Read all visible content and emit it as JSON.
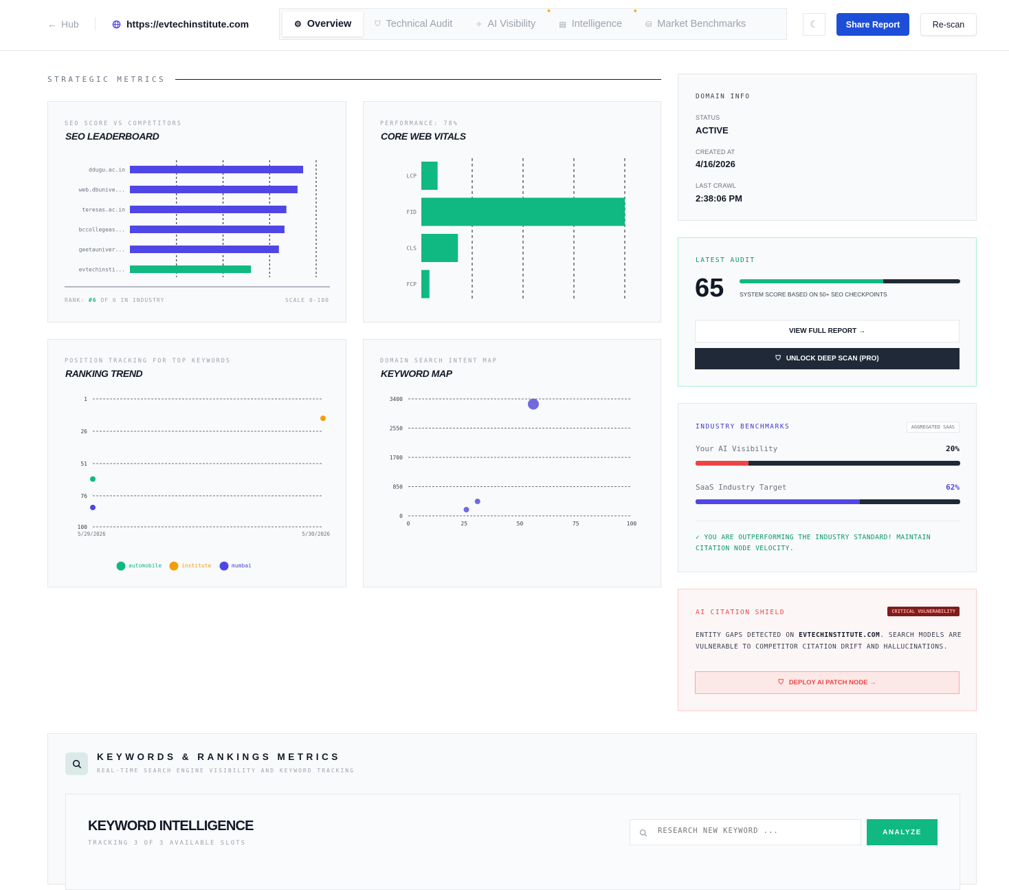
{
  "nav": {
    "hub_label": "Hub",
    "url": "https://evtechinstitute.com",
    "tabs": [
      {
        "label": "Overview",
        "icon": "grid-icon"
      },
      {
        "label": "Technical Audit",
        "icon": "shield-icon"
      },
      {
        "label": "AI Visibility",
        "icon": "sparkle-icon"
      },
      {
        "label": "Intelligence",
        "icon": "document-icon"
      },
      {
        "label": "Market Benchmarks",
        "icon": "database-icon"
      }
    ],
    "share_label": "Share Report",
    "rescan_label": "Re-scan"
  },
  "strategic_label": "STRATEGIC METRICS",
  "leaderboard": {
    "kicker": "SEO SCORE VS COMPETITORS",
    "title": "SEO LEADERBOARD",
    "rank_prefix": "RANK:",
    "rank_value": "#6",
    "rank_suffix": "OF 6 IN INDUSTRY",
    "scale": "SCALE 0-100"
  },
  "cwv": {
    "kicker": "PERFORMANCE: 78%",
    "title": "CORE WEB VITALS"
  },
  "ranking": {
    "kicker": "POSITION TRACKING FOR TOP KEYWORDS",
    "title": "RANKING TREND"
  },
  "keymap": {
    "kicker": "DOMAIN SEARCH INTENT MAP",
    "title": "KEYWORD MAP"
  },
  "chart_data": [
    {
      "type": "bar",
      "orientation": "horizontal",
      "categories": [
        "ddugu.ac.in",
        "web.dbunive...",
        "teresas.ac.in",
        "bccollegeas...",
        "geetauniver...",
        "evtechinsti..."
      ],
      "values": [
        93,
        90,
        84,
        83,
        80,
        65
      ],
      "xlim": [
        0,
        100
      ],
      "colors": [
        "#4f46e5",
        "#4f46e5",
        "#4f46e5",
        "#4f46e5",
        "#4f46e5",
        "#10b981"
      ],
      "grid": true
    },
    {
      "type": "bar",
      "orientation": "horizontal",
      "categories": [
        "LCP",
        "FID",
        "CLS",
        "FCP"
      ],
      "values": [
        8,
        100,
        18,
        4
      ],
      "colors": [
        "#10b981"
      ],
      "grid": true
    },
    {
      "type": "scatter",
      "x_ticks": [
        "5/29/2026",
        "5/30/2026"
      ],
      "y_ticks": [
        "1",
        "26",
        "51",
        "76",
        "100"
      ],
      "ylim": [
        1,
        100
      ],
      "y_inverted": true,
      "series": [
        {
          "name": "automobile",
          "color": "#10b981",
          "points": [
            {
              "x": "5/29/2026",
              "y": 63
            }
          ]
        },
        {
          "name": "institute",
          "color": "#f59e0b",
          "points": [
            {
              "x": "5/30/2026",
              "y": 16
            }
          ]
        },
        {
          "name": "mumbai",
          "color": "#4f46e5",
          "points": [
            {
              "x": "5/29/2026",
              "y": 85
            }
          ]
        }
      ],
      "legend": "bottom"
    },
    {
      "type": "scatter",
      "x_ticks": [
        "0",
        "25",
        "50",
        "75",
        "100"
      ],
      "y_ticks": [
        "0",
        "850",
        "1700",
        "2550",
        "3400"
      ],
      "xlim": [
        0,
        100
      ],
      "ylim": [
        0,
        3400
      ],
      "points": [
        {
          "x": 56,
          "y": 3250,
          "r": 8
        },
        {
          "x": 26,
          "y": 180,
          "r": 4
        },
        {
          "x": 31,
          "y": 420,
          "r": 4
        }
      ],
      "color": "#5b4fdb"
    }
  ],
  "domain_info": {
    "label": "DOMAIN INFO",
    "status_label": "STATUS",
    "status": "ACTIVE",
    "created_label": "CREATED AT",
    "created": "4/16/2026",
    "crawl_label": "LAST CRAWL",
    "crawl": "2:38:06 PM"
  },
  "audit": {
    "label": "LATEST AUDIT",
    "score": "65",
    "score_fraction": 0.65,
    "caption": "SYSTEM SCORE BASED ON 50+ SEO CHECKPOINTS",
    "view_label": "VIEW FULL REPORT →",
    "unlock_label": "UNLOCK DEEP SCAN (PRO)"
  },
  "benchmarks": {
    "label": "INDUSTRY BENCHMARKS",
    "badge": "AGGREGATED SAAS",
    "rows": [
      {
        "label": "Your AI Visibility",
        "value": "20%",
        "fraction": 0.2,
        "color": "#ef4444"
      },
      {
        "label": "SaaS Industry Target",
        "value": "62%",
        "fraction": 0.62,
        "color": "#4f46e5"
      }
    ],
    "note": "✓ YOU ARE OUTPERFORMING THE INDUSTRY STANDARD! MAINTAIN CITATION NODE VELOCITY."
  },
  "shield": {
    "label": "AI CITATION SHIELD",
    "badge": "CRITICAL VULNERABILITY",
    "text_pre": "ENTITY GAPS DETECTED ON",
    "domain": "EVTECHINSTITUTE.COM",
    "text_post": ". SEARCH MODELS ARE VULNERABLE TO COMPETITOR CITATION DRIFT AND HALLUCINATIONS.",
    "button": "DEPLOY AI PATCH NODE →"
  },
  "keywords": {
    "title": "KEYWORDS & RANKINGS METRICS",
    "subtitle": "REAL-TIME SEARCH ENGINE VISIBILITY AND KEYWORD TRACKING",
    "intel_title": "KEYWORD INTELLIGENCE",
    "intel_sub": "TRACKING 3 OF 3 AVAILABLE SLOTS",
    "search_placeholder": "RESEARCH NEW KEYWORD ...",
    "analyze_label": "ANALYZE"
  }
}
